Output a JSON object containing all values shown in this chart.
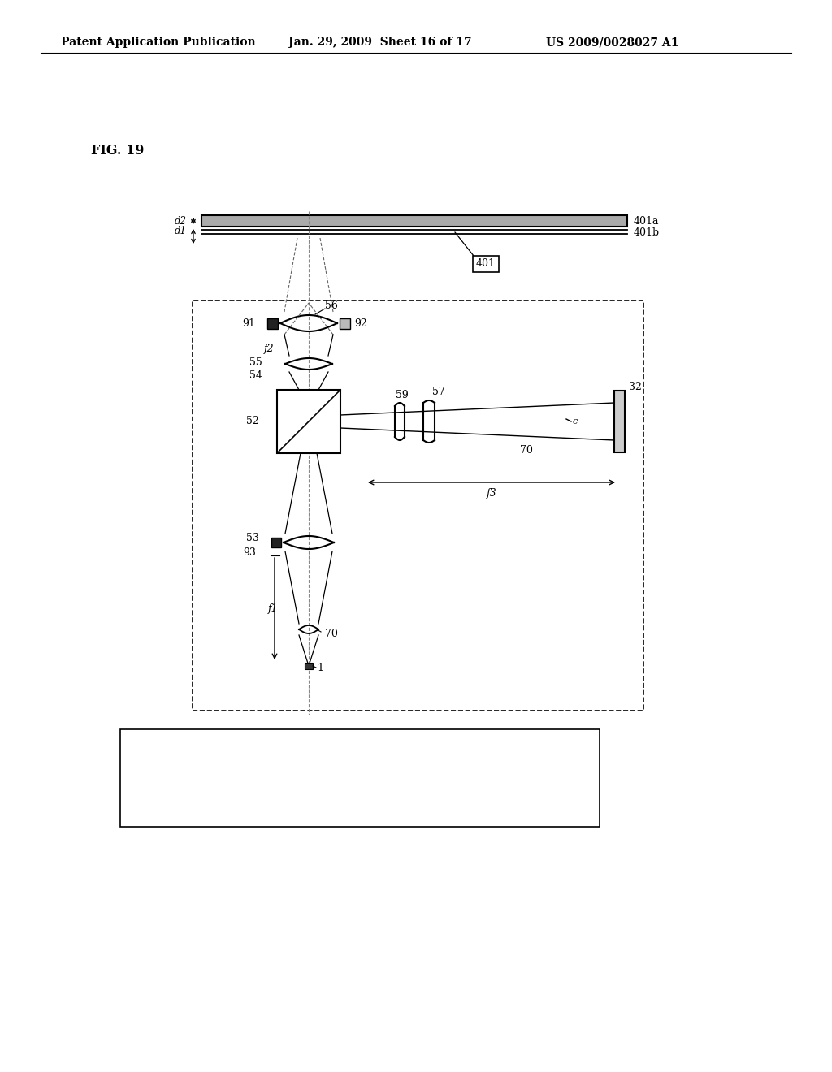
{
  "bg_color": "#ffffff",
  "header_left": "Patent Application Publication",
  "header_center": "Jan. 29, 2009  Sheet 16 of 17",
  "header_right": "US 2009/0028027 A1",
  "fig_label": "FIG. 19"
}
